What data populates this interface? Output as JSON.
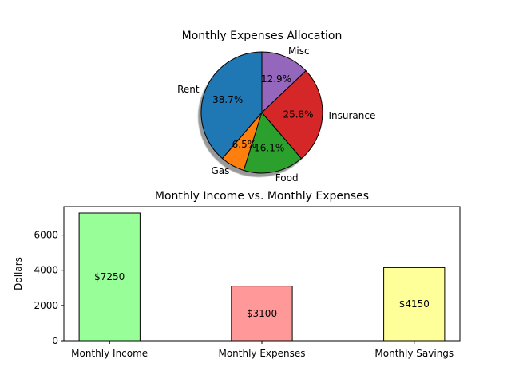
{
  "chart_data": [
    {
      "type": "pie",
      "title": "Monthly Expenses Allocation",
      "labels": [
        "Rent",
        "Gas",
        "Food",
        "Insurance",
        "Misc"
      ],
      "values": [
        1200,
        200,
        500,
        800,
        400
      ],
      "percent_labels": [
        "38.7%",
        "6.5%",
        "16.1%",
        "25.8%",
        "12.9%"
      ],
      "colors": [
        "#1f77b4",
        "#ff7f0e",
        "#2ca02c",
        "#d62728",
        "#9467bd"
      ],
      "start_angle_deg": 90,
      "direction": "counterclockwise",
      "shadow": true
    },
    {
      "type": "bar",
      "title": "Monthly Income vs. Monthly Expenses",
      "categories": [
        "Monthly Income",
        "Monthly Expenses",
        "Monthly Savings"
      ],
      "values": [
        7250,
        3100,
        4150
      ],
      "data_labels": [
        "$7250",
        "$3100",
        "$4150"
      ],
      "colors": [
        "#98ff98",
        "#ff9999",
        "#ffff99"
      ],
      "xlabel": "",
      "ylabel": "Dollars",
      "ylim": [
        0,
        7612
      ],
      "yticks": [
        0,
        2000,
        4000,
        6000
      ],
      "ytick_labels": [
        "0",
        "2000",
        "4000",
        "6000"
      ],
      "grid": false
    }
  ]
}
